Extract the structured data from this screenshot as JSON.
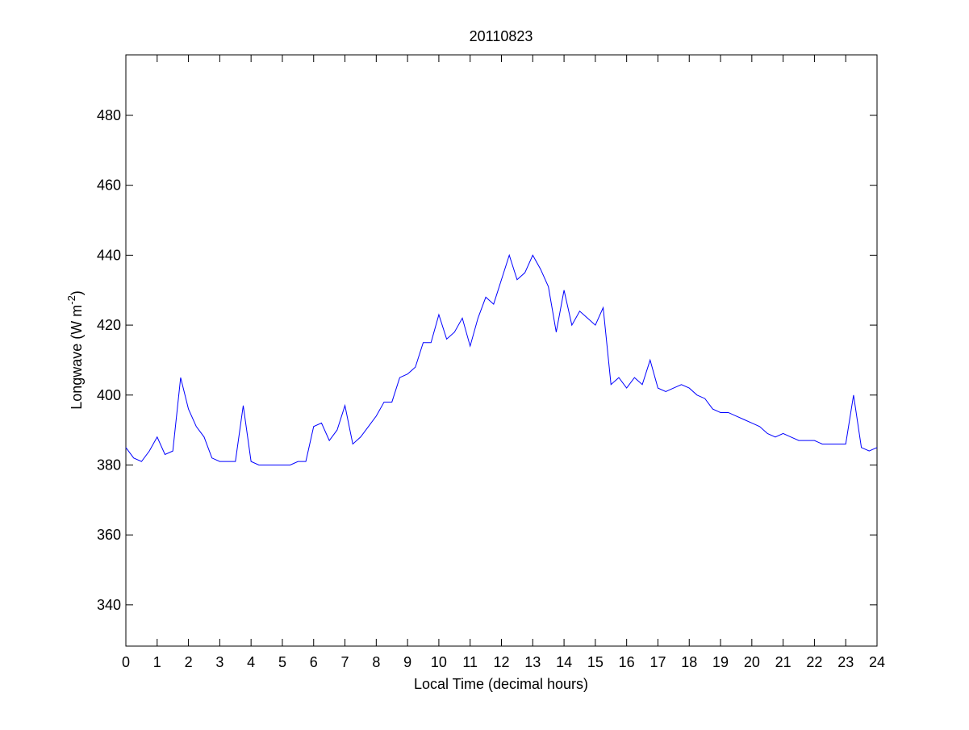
{
  "chart_data": {
    "type": "line",
    "title": "20110823",
    "xlabel": "Local Time (decimal hours)",
    "ylabel": {
      "text": "Longwave (W m",
      "sup": "-2",
      "end": ")"
    },
    "x": [
      0,
      0.25,
      0.5,
      0.75,
      1,
      1.25,
      1.5,
      1.75,
      2,
      2.25,
      2.5,
      2.75,
      3,
      3.25,
      3.5,
      3.75,
      4,
      4.25,
      4.5,
      4.75,
      5,
      5.25,
      5.5,
      5.75,
      6,
      6.25,
      6.5,
      6.75,
      7,
      7.25,
      7.5,
      7.75,
      8,
      8.25,
      8.5,
      8.75,
      9,
      9.25,
      9.5,
      9.75,
      10,
      10.25,
      10.5,
      10.75,
      11,
      11.25,
      11.5,
      11.75,
      12,
      12.25,
      12.5,
      12.75,
      13,
      13.25,
      13.5,
      13.75,
      14,
      14.25,
      14.5,
      14.75,
      15,
      15.25,
      15.5,
      15.75,
      16,
      16.25,
      16.5,
      16.75,
      17,
      17.25,
      17.5,
      17.75,
      18,
      18.25,
      18.5,
      18.75,
      19,
      19.25,
      19.5,
      19.75,
      20,
      20.25,
      20.5,
      20.75,
      21,
      21.25,
      21.5,
      21.75,
      22,
      22.25,
      22.5,
      22.75,
      23,
      23.25,
      23.5,
      23.75,
      24
    ],
    "series": [
      {
        "color": "#0000ff",
        "values": [
          385,
          382,
          381,
          384,
          388,
          383,
          384,
          405,
          396,
          391,
          388,
          382,
          381,
          381,
          381,
          397,
          381,
          380,
          380,
          380,
          380,
          380,
          381,
          381,
          391,
          392,
          387,
          390,
          397,
          386,
          388,
          391,
          394,
          398,
          398,
          405,
          406,
          408,
          415,
          415,
          423,
          416,
          418,
          422,
          414,
          422,
          428,
          426,
          433,
          440,
          433,
          435,
          440,
          436,
          431,
          418,
          430,
          420,
          424,
          422,
          420,
          425,
          403,
          405,
          402,
          405,
          403,
          410,
          402,
          401,
          402,
          403,
          402,
          400,
          399,
          396,
          395,
          395,
          394,
          393,
          392,
          391,
          389,
          388,
          389,
          388,
          387,
          387,
          387,
          386,
          386,
          386,
          386,
          400,
          385,
          384,
          385
        ]
      }
    ],
    "xlim": [
      0,
      24
    ],
    "xticks": [
      0,
      1,
      2,
      3,
      4,
      5,
      6,
      7,
      8,
      9,
      10,
      11,
      12,
      13,
      14,
      15,
      16,
      17,
      18,
      19,
      20,
      21,
      22,
      23,
      24
    ],
    "ylim": [
      328.2,
      497.3
    ],
    "yticks": [
      340,
      360,
      380,
      400,
      420,
      440,
      460,
      480
    ]
  }
}
